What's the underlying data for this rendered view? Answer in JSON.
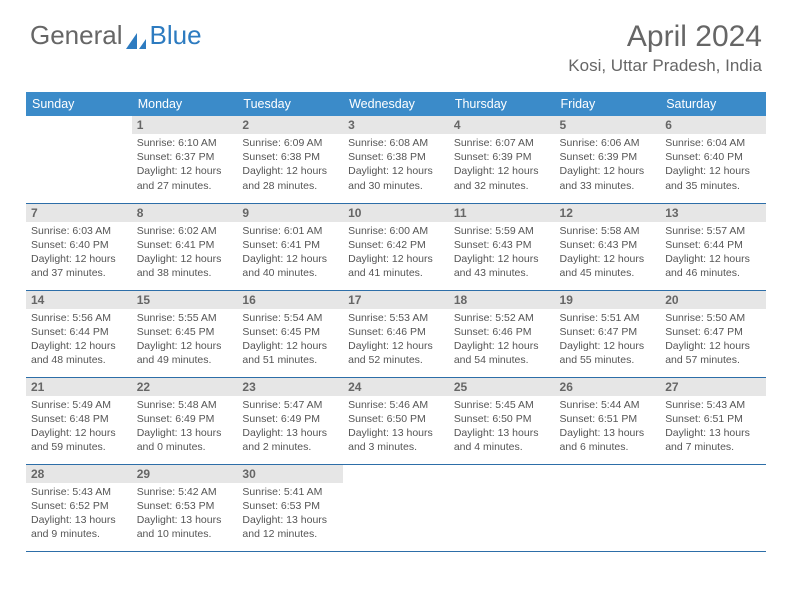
{
  "logo": {
    "text_general": "General",
    "text_blue": "Blue"
  },
  "header": {
    "month": "April 2024",
    "location": "Kosi, Uttar Pradesh, India"
  },
  "colors": {
    "header_bg": "#3b8bc9",
    "header_text": "#ffffff",
    "date_bg": "#e6e6e6",
    "week_border": "#2d6ea8",
    "body_text": "#555555",
    "title_text": "#666666"
  },
  "day_names": [
    "Sunday",
    "Monday",
    "Tuesday",
    "Wednesday",
    "Thursday",
    "Friday",
    "Saturday"
  ],
  "weeks": [
    [
      {
        "date": "",
        "empty": true
      },
      {
        "date": "1",
        "sunrise": "Sunrise: 6:10 AM",
        "sunset": "Sunset: 6:37 PM",
        "daylight": "Daylight: 12 hours and 27 minutes."
      },
      {
        "date": "2",
        "sunrise": "Sunrise: 6:09 AM",
        "sunset": "Sunset: 6:38 PM",
        "daylight": "Daylight: 12 hours and 28 minutes."
      },
      {
        "date": "3",
        "sunrise": "Sunrise: 6:08 AM",
        "sunset": "Sunset: 6:38 PM",
        "daylight": "Daylight: 12 hours and 30 minutes."
      },
      {
        "date": "4",
        "sunrise": "Sunrise: 6:07 AM",
        "sunset": "Sunset: 6:39 PM",
        "daylight": "Daylight: 12 hours and 32 minutes."
      },
      {
        "date": "5",
        "sunrise": "Sunrise: 6:06 AM",
        "sunset": "Sunset: 6:39 PM",
        "daylight": "Daylight: 12 hours and 33 minutes."
      },
      {
        "date": "6",
        "sunrise": "Sunrise: 6:04 AM",
        "sunset": "Sunset: 6:40 PM",
        "daylight": "Daylight: 12 hours and 35 minutes."
      }
    ],
    [
      {
        "date": "7",
        "sunrise": "Sunrise: 6:03 AM",
        "sunset": "Sunset: 6:40 PM",
        "daylight": "Daylight: 12 hours and 37 minutes."
      },
      {
        "date": "8",
        "sunrise": "Sunrise: 6:02 AM",
        "sunset": "Sunset: 6:41 PM",
        "daylight": "Daylight: 12 hours and 38 minutes."
      },
      {
        "date": "9",
        "sunrise": "Sunrise: 6:01 AM",
        "sunset": "Sunset: 6:41 PM",
        "daylight": "Daylight: 12 hours and 40 minutes."
      },
      {
        "date": "10",
        "sunrise": "Sunrise: 6:00 AM",
        "sunset": "Sunset: 6:42 PM",
        "daylight": "Daylight: 12 hours and 41 minutes."
      },
      {
        "date": "11",
        "sunrise": "Sunrise: 5:59 AM",
        "sunset": "Sunset: 6:43 PM",
        "daylight": "Daylight: 12 hours and 43 minutes."
      },
      {
        "date": "12",
        "sunrise": "Sunrise: 5:58 AM",
        "sunset": "Sunset: 6:43 PM",
        "daylight": "Daylight: 12 hours and 45 minutes."
      },
      {
        "date": "13",
        "sunrise": "Sunrise: 5:57 AM",
        "sunset": "Sunset: 6:44 PM",
        "daylight": "Daylight: 12 hours and 46 minutes."
      }
    ],
    [
      {
        "date": "14",
        "sunrise": "Sunrise: 5:56 AM",
        "sunset": "Sunset: 6:44 PM",
        "daylight": "Daylight: 12 hours and 48 minutes."
      },
      {
        "date": "15",
        "sunrise": "Sunrise: 5:55 AM",
        "sunset": "Sunset: 6:45 PM",
        "daylight": "Daylight: 12 hours and 49 minutes."
      },
      {
        "date": "16",
        "sunrise": "Sunrise: 5:54 AM",
        "sunset": "Sunset: 6:45 PM",
        "daylight": "Daylight: 12 hours and 51 minutes."
      },
      {
        "date": "17",
        "sunrise": "Sunrise: 5:53 AM",
        "sunset": "Sunset: 6:46 PM",
        "daylight": "Daylight: 12 hours and 52 minutes."
      },
      {
        "date": "18",
        "sunrise": "Sunrise: 5:52 AM",
        "sunset": "Sunset: 6:46 PM",
        "daylight": "Daylight: 12 hours and 54 minutes."
      },
      {
        "date": "19",
        "sunrise": "Sunrise: 5:51 AM",
        "sunset": "Sunset: 6:47 PM",
        "daylight": "Daylight: 12 hours and 55 minutes."
      },
      {
        "date": "20",
        "sunrise": "Sunrise: 5:50 AM",
        "sunset": "Sunset: 6:47 PM",
        "daylight": "Daylight: 12 hours and 57 minutes."
      }
    ],
    [
      {
        "date": "21",
        "sunrise": "Sunrise: 5:49 AM",
        "sunset": "Sunset: 6:48 PM",
        "daylight": "Daylight: 12 hours and 59 minutes."
      },
      {
        "date": "22",
        "sunrise": "Sunrise: 5:48 AM",
        "sunset": "Sunset: 6:49 PM",
        "daylight": "Daylight: 13 hours and 0 minutes."
      },
      {
        "date": "23",
        "sunrise": "Sunrise: 5:47 AM",
        "sunset": "Sunset: 6:49 PM",
        "daylight": "Daylight: 13 hours and 2 minutes."
      },
      {
        "date": "24",
        "sunrise": "Sunrise: 5:46 AM",
        "sunset": "Sunset: 6:50 PM",
        "daylight": "Daylight: 13 hours and 3 minutes."
      },
      {
        "date": "25",
        "sunrise": "Sunrise: 5:45 AM",
        "sunset": "Sunset: 6:50 PM",
        "daylight": "Daylight: 13 hours and 4 minutes."
      },
      {
        "date": "26",
        "sunrise": "Sunrise: 5:44 AM",
        "sunset": "Sunset: 6:51 PM",
        "daylight": "Daylight: 13 hours and 6 minutes."
      },
      {
        "date": "27",
        "sunrise": "Sunrise: 5:43 AM",
        "sunset": "Sunset: 6:51 PM",
        "daylight": "Daylight: 13 hours and 7 minutes."
      }
    ],
    [
      {
        "date": "28",
        "sunrise": "Sunrise: 5:43 AM",
        "sunset": "Sunset: 6:52 PM",
        "daylight": "Daylight: 13 hours and 9 minutes."
      },
      {
        "date": "29",
        "sunrise": "Sunrise: 5:42 AM",
        "sunset": "Sunset: 6:53 PM",
        "daylight": "Daylight: 13 hours and 10 minutes."
      },
      {
        "date": "30",
        "sunrise": "Sunrise: 5:41 AM",
        "sunset": "Sunset: 6:53 PM",
        "daylight": "Daylight: 13 hours and 12 minutes."
      },
      {
        "date": "",
        "empty": true
      },
      {
        "date": "",
        "empty": true
      },
      {
        "date": "",
        "empty": true
      },
      {
        "date": "",
        "empty": true
      }
    ]
  ]
}
